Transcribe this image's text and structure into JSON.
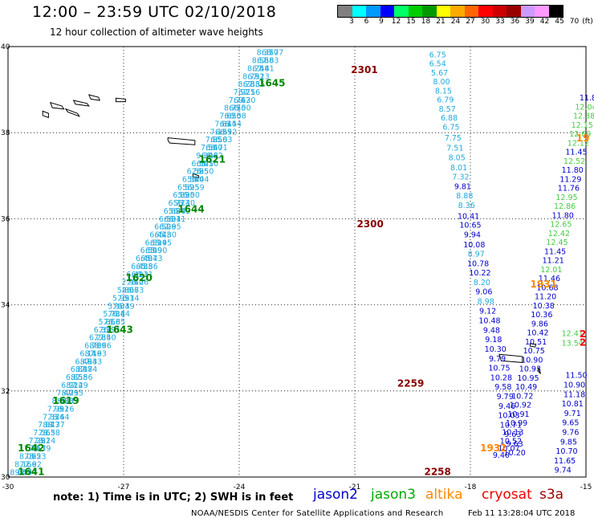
{
  "header": {
    "title": "12:00 – 23:59 UTC 02/10/2018",
    "subtitle": "12 hour collection of altimeter wave heights"
  },
  "colorbar": {
    "colors": [
      "#808080",
      "#00ffff",
      "#0099ff",
      "#0000ff",
      "#00ff66",
      "#00cc00",
      "#009900",
      "#ffff00",
      "#ffaa00",
      "#ff6600",
      "#ff0000",
      "#cc0000",
      "#990000",
      "#cc99ff",
      "#ff99ff",
      "#000000"
    ],
    "labels": [
      "3",
      "6",
      "9",
      "12",
      "15",
      "18",
      "21",
      "24",
      "27",
      "30",
      "33",
      "36",
      "39",
      "42",
      "45",
      "70"
    ],
    "unit": "(ft)"
  },
  "axes": {
    "x_ticks": [
      "-30",
      "-27",
      "-24",
      "-21",
      "-18",
      "-15"
    ],
    "y_ticks": [
      "30",
      "32",
      "34",
      "36",
      "38",
      "40"
    ],
    "xlim": [
      -30,
      -15
    ],
    "ylim": [
      30,
      40
    ]
  },
  "time_labels": [
    {
      "t": "1645",
      "lon": -23.15,
      "lat": 39.08,
      "color": "#008800"
    },
    {
      "t": "1621",
      "lon": -24.7,
      "lat": 37.3,
      "color": "#008800"
    },
    {
      "t": "1644",
      "lon": -25.25,
      "lat": 36.15,
      "color": "#008800"
    },
    {
      "t": "1620",
      "lon": -26.6,
      "lat": 34.55,
      "color": "#008800"
    },
    {
      "t": "1643",
      "lon": -27.1,
      "lat": 33.35,
      "color": "#008800"
    },
    {
      "t": "1619",
      "lon": -28.5,
      "lat": 31.7,
      "color": "#008800"
    },
    {
      "t": "1642",
      "lon": -29.4,
      "lat": 30.6,
      "color": "#008800"
    },
    {
      "t": "1641",
      "lon": -29.4,
      "lat": 30.05,
      "color": "#008800"
    },
    {
      "t": "2301",
      "lon": -20.75,
      "lat": 39.38,
      "color": "#880000"
    },
    {
      "t": "2300",
      "lon": -20.6,
      "lat": 35.8,
      "color": "#880000"
    },
    {
      "t": "2259",
      "lon": -19.55,
      "lat": 32.1,
      "color": "#880000"
    },
    {
      "t": "2258",
      "lon": -18.85,
      "lat": 30.05,
      "color": "#880000"
    },
    {
      "t": "1931",
      "lon": -16.1,
      "lat": 34.4,
      "color": "#ff8800"
    },
    {
      "t": "1932",
      "lon": -17.4,
      "lat": 30.6,
      "color": "#ff8800"
    },
    {
      "t": "19",
      "lon": -15.08,
      "lat": 37.8,
      "color": "#ff8800"
    },
    {
      "t": "2",
      "lon": -15.08,
      "lat": 33.25,
      "color": "#ff0000"
    },
    {
      "t": "2",
      "lon": -15.08,
      "lat": 33.05,
      "color": "#ff0000"
    }
  ],
  "tracks": [
    {
      "name": "jason2 descending",
      "color": "#0000cc",
      "points": [
        {
          "lon": -18.85,
          "lat": 39.75,
          "v": "6.75",
          "c": "#22aadd"
        },
        {
          "lon": -18.85,
          "lat": 39.54,
          "v": "6.54",
          "c": "#22aadd"
        },
        {
          "lon": -18.8,
          "lat": 39.33,
          "v": "5.67",
          "c": "#22aadd"
        },
        {
          "lon": -18.75,
          "lat": 39.12,
          "v": "8.00",
          "c": "#22aadd"
        },
        {
          "lon": -18.7,
          "lat": 38.91,
          "v": "8.15",
          "c": "#22aadd"
        },
        {
          "lon": -18.65,
          "lat": 38.7,
          "v": "6.79",
          "c": "#22aadd"
        },
        {
          "lon": -18.6,
          "lat": 38.49,
          "v": "8.57",
          "c": "#22aadd"
        },
        {
          "lon": -18.55,
          "lat": 38.28,
          "v": "6.88",
          "c": "#22aadd"
        },
        {
          "lon": -18.5,
          "lat": 38.07,
          "v": "6.75",
          "c": "#22aadd"
        },
        {
          "lon": -18.45,
          "lat": 37.82,
          "v": "7.75",
          "c": "#22aadd"
        },
        {
          "lon": -18.4,
          "lat": 37.58,
          "v": "7.51",
          "c": "#22aadd"
        },
        {
          "lon": -18.35,
          "lat": 37.36,
          "v": "8.05",
          "c": "#22aadd"
        },
        {
          "lon": -18.3,
          "lat": 37.13,
          "v": "8.01",
          "c": "#22aadd"
        },
        {
          "lon": -18.25,
          "lat": 36.91,
          "v": "7.32",
          "c": "#22aadd"
        },
        {
          "lon": -18.2,
          "lat": 36.69,
          "v": "9.81",
          "c": "#0000cc"
        },
        {
          "lon": -18.15,
          "lat": 36.47,
          "v": "8.88",
          "c": "#22aadd"
        },
        {
          "lon": -18.1,
          "lat": 36.25,
          "v": "8.36",
          "c": "#22aadd"
        },
        {
          "lon": -18.05,
          "lat": 36.0,
          "v": "10.41",
          "c": "#0000cc"
        },
        {
          "lon": -18.0,
          "lat": 35.79,
          "v": "10.65",
          "c": "#0000cc"
        },
        {
          "lon": -17.95,
          "lat": 35.57,
          "v": "9.94",
          "c": "#0000cc"
        },
        {
          "lon": -17.9,
          "lat": 35.34,
          "v": "10.08",
          "c": "#0000cc"
        },
        {
          "lon": -17.85,
          "lat": 35.12,
          "v": "8.97",
          "c": "#22aadd"
        },
        {
          "lon": -17.8,
          "lat": 34.9,
          "v": "10.78",
          "c": "#0000cc"
        },
        {
          "lon": -17.75,
          "lat": 34.68,
          "v": "10.22",
          "c": "#0000cc"
        },
        {
          "lon": -17.7,
          "lat": 34.46,
          "v": "8.20",
          "c": "#22aadd"
        },
        {
          "lon": -17.65,
          "lat": 34.24,
          "v": "9.06",
          "c": "#0000cc"
        },
        {
          "lon": -17.6,
          "lat": 34.02,
          "v": "8.98",
          "c": "#22aadd"
        },
        {
          "lon": -17.55,
          "lat": 33.8,
          "v": "9.12",
          "c": "#0000cc"
        },
        {
          "lon": -17.5,
          "lat": 33.57,
          "v": "10.48",
          "c": "#0000cc"
        },
        {
          "lon": -17.45,
          "lat": 33.35,
          "v": "9.48",
          "c": "#0000cc"
        },
        {
          "lon": -17.4,
          "lat": 33.13,
          "v": "9.18",
          "c": "#0000cc"
        },
        {
          "lon": -17.35,
          "lat": 32.91,
          "v": "10.30",
          "c": "#0000cc"
        },
        {
          "lon": -17.3,
          "lat": 32.69,
          "v": "9.79",
          "c": "#0000cc"
        },
        {
          "lon": -17.25,
          "lat": 32.47,
          "v": "10.75",
          "c": "#0000cc"
        },
        {
          "lon": -17.2,
          "lat": 32.25,
          "v": "10.28",
          "c": "#0000cc"
        },
        {
          "lon": -17.15,
          "lat": 32.03,
          "v": "9.58",
          "c": "#0000cc"
        },
        {
          "lon": -17.1,
          "lat": 31.81,
          "v": "9.79",
          "c": "#0000cc"
        },
        {
          "lon": -17.05,
          "lat": 31.59,
          "v": "9.46",
          "c": "#0000cc"
        },
        {
          "lon": -17.0,
          "lat": 31.37,
          "v": "10.03",
          "c": "#0000cc"
        },
        {
          "lon": -16.95,
          "lat": 31.15,
          "v": "10.71",
          "c": "#0000cc"
        },
        {
          "lon": -16.9,
          "lat": 30.93,
          "v": "9.63",
          "c": "#0000cc"
        },
        {
          "lon": -16.85,
          "lat": 30.71,
          "v": "9.63",
          "c": "#0000cc"
        },
        {
          "lon": -16.85,
          "lat": 30.5,
          "v": "10.20",
          "c": "#0000cc"
        }
      ]
    },
    {
      "name": "jason2 ascending",
      "color": "#0000cc",
      "points": [
        {
          "lon": -17.2,
          "lat": 30.45,
          "v": "9.40",
          "c": "#0000cc"
        },
        {
          "lon": -17.0,
          "lat": 30.61,
          "v": "10.07",
          "c": "#0000cc"
        },
        {
          "lon": -16.95,
          "lat": 30.77,
          "v": "10.52",
          "c": "#0000cc"
        },
        {
          "lon": -16.9,
          "lat": 30.98,
          "v": "10.13",
          "c": "#0000cc"
        },
        {
          "lon": -16.8,
          "lat": 31.19,
          "v": "10.99",
          "c": "#0000cc"
        },
        {
          "lon": -16.75,
          "lat": 31.4,
          "v": "10.91",
          "c": "#0000cc"
        },
        {
          "lon": -16.7,
          "lat": 31.61,
          "v": "10.92",
          "c": "#0000cc"
        },
        {
          "lon": -16.65,
          "lat": 31.82,
          "v": "10.72",
          "c": "#0000cc"
        },
        {
          "lon": -16.55,
          "lat": 32.03,
          "v": "10.49",
          "c": "#0000cc"
        },
        {
          "lon": -16.5,
          "lat": 32.24,
          "v": "10.95",
          "c": "#0000cc"
        },
        {
          "lon": -16.45,
          "lat": 32.45,
          "v": "10.93",
          "c": "#0000cc"
        },
        {
          "lon": -16.4,
          "lat": 32.66,
          "v": "10.90",
          "c": "#0000cc"
        },
        {
          "lon": -16.35,
          "lat": 32.87,
          "v": "10.75",
          "c": "#0000cc"
        },
        {
          "lon": -16.3,
          "lat": 33.08,
          "v": "10.51",
          "c": "#0000cc"
        },
        {
          "lon": -16.25,
          "lat": 33.29,
          "v": "10.42",
          "c": "#0000cc"
        },
        {
          "lon": -16.2,
          "lat": 33.5,
          "v": "9.86",
          "c": "#0000cc"
        },
        {
          "lon": -16.15,
          "lat": 33.71,
          "v": "10.36",
          "c": "#0000cc"
        },
        {
          "lon": -16.1,
          "lat": 33.92,
          "v": "10.38",
          "c": "#0000cc"
        },
        {
          "lon": -16.05,
          "lat": 34.13,
          "v": "11.20",
          "c": "#0000cc"
        },
        {
          "lon": -16.0,
          "lat": 34.34,
          "v": "10.68",
          "c": "#0000cc"
        },
        {
          "lon": -15.95,
          "lat": 34.55,
          "v": "11.46",
          "c": "#0000cc"
        },
        {
          "lon": -15.9,
          "lat": 34.76,
          "v": "12.01",
          "c": "#44cc44"
        },
        {
          "lon": -15.85,
          "lat": 34.97,
          "v": "11.21",
          "c": "#0000cc"
        },
        {
          "lon": -15.8,
          "lat": 35.18,
          "v": "11.45",
          "c": "#0000cc"
        },
        {
          "lon": -15.75,
          "lat": 35.39,
          "v": "12.45",
          "c": "#44cc44"
        },
        {
          "lon": -15.7,
          "lat": 35.6,
          "v": "12.42",
          "c": "#44cc44"
        },
        {
          "lon": -15.65,
          "lat": 35.81,
          "v": "12.65",
          "c": "#44cc44"
        },
        {
          "lon": -15.6,
          "lat": 36.02,
          "v": "11.80",
          "c": "#0000cc"
        },
        {
          "lon": -15.55,
          "lat": 36.23,
          "v": "12.86",
          "c": "#44cc44"
        },
        {
          "lon": -15.5,
          "lat": 36.44,
          "v": "12.95",
          "c": "#44cc44"
        },
        {
          "lon": -15.45,
          "lat": 36.65,
          "v": "11.76",
          "c": "#0000cc"
        },
        {
          "lon": -15.4,
          "lat": 36.86,
          "v": "11.29",
          "c": "#0000cc"
        },
        {
          "lon": -15.35,
          "lat": 37.07,
          "v": "11.80",
          "c": "#0000cc"
        },
        {
          "lon": -15.3,
          "lat": 37.28,
          "v": "12.52",
          "c": "#44cc44"
        },
        {
          "lon": -15.25,
          "lat": 37.49,
          "v": "11.45",
          "c": "#0000cc"
        },
        {
          "lon": -15.2,
          "lat": 37.7,
          "v": "12.12",
          "c": "#44cc44"
        },
        {
          "lon": -15.15,
          "lat": 37.91,
          "v": "12.69",
          "c": "#44cc44"
        },
        {
          "lon": -15.1,
          "lat": 38.12,
          "v": "12.15",
          "c": "#44cc44"
        },
        {
          "lon": -15.05,
          "lat": 38.33,
          "v": "12.38",
          "c": "#44cc44"
        },
        {
          "lon": -15.0,
          "lat": 38.54,
          "v": "12.04",
          "c": "#44cc44"
        },
        {
          "lon": -14.95,
          "lat": 38.75,
          "v": "11.8",
          "c": "#0000cc"
        }
      ]
    },
    {
      "name": "jason2 east segment",
      "color": "#0000cc",
      "points": [
        {
          "lon": -15.6,
          "lat": 30.1,
          "v": "9.74",
          "c": "#0000cc"
        },
        {
          "lon": -15.55,
          "lat": 30.32,
          "v": "11.65",
          "c": "#0000cc"
        },
        {
          "lon": -15.5,
          "lat": 30.54,
          "v": "10.70",
          "c": "#0000cc"
        },
        {
          "lon": -15.45,
          "lat": 30.76,
          "v": "9.85",
          "c": "#0000cc"
        },
        {
          "lon": -15.4,
          "lat": 30.98,
          "v": "9.76",
          "c": "#0000cc"
        },
        {
          "lon": -15.4,
          "lat": 31.2,
          "v": "9.65",
          "c": "#0000cc"
        },
        {
          "lon": -15.35,
          "lat": 31.42,
          "v": "9.71",
          "c": "#0000cc"
        },
        {
          "lon": -15.35,
          "lat": 31.64,
          "v": "10.81",
          "c": "#0000cc"
        },
        {
          "lon": -15.3,
          "lat": 31.86,
          "v": "11.18",
          "c": "#0000cc"
        },
        {
          "lon": -15.3,
          "lat": 32.08,
          "v": "10.90",
          "c": "#0000cc"
        },
        {
          "lon": -15.25,
          "lat": 32.3,
          "v": "11.50",
          "c": "#0000cc"
        },
        {
          "lon": -15.35,
          "lat": 33.05,
          "v": "13.54",
          "c": "#44cc44"
        },
        {
          "lon": -15.35,
          "lat": 33.27,
          "v": "12.41",
          "c": "#44cc44"
        }
      ]
    }
  ],
  "jason3_track": {
    "color": "#22aadd",
    "values": [
      "9.30",
      "7.56",
      "7.85",
      "7.13",
      "7.81",
      "7.63",
      "8.77",
      "7.74",
      "7.92",
      "8.23",
      "8.79",
      "8.24",
      "8.58",
      "8.37",
      "8.64",
      "8.16",
      "8.09",
      "7.35",
      "7.29",
      "7.56",
      "7.84",
      "7.33",
      "7.93",
      "8.66",
      "7.40",
      "6.91",
      "6.85",
      "6.84",
      "6.49",
      "6.14",
      "6.73",
      "6.26",
      "6.31",
      "5.86",
      "5.73",
      "5.90",
      "5.95",
      "5.80",
      "2.95",
      "6.41",
      "6.43",
      "6.40",
      "6.50",
      "6.59",
      "6.44",
      "6.50",
      "6.50",
      "6.62",
      "6.71",
      "6.83",
      "6.52",
      "6.54",
      "6.58",
      "6.50"
    ],
    "start": {
      "lon": -29.6,
      "lat": 30.05
    },
    "end": {
      "lon": -23.2,
      "lat": 39.8
    }
  },
  "footer": {
    "note": "note:  1) Time is in UTC;  2) SWH is in feet",
    "legend": [
      {
        "label": "jason2",
        "color": "#0000cc"
      },
      {
        "label": "jason3",
        "color": "#00aa00"
      },
      {
        "label": "altika",
        "color": "#ff8800"
      },
      {
        "label": "cryosat",
        "color": "#ee0000"
      },
      {
        "label": "s3a",
        "color": "#990000"
      }
    ],
    "credit": "NOAA/NESDIS Center for Satellite Applications and Research",
    "generated": "Feb 11 13:28:04 UTC 2018"
  }
}
